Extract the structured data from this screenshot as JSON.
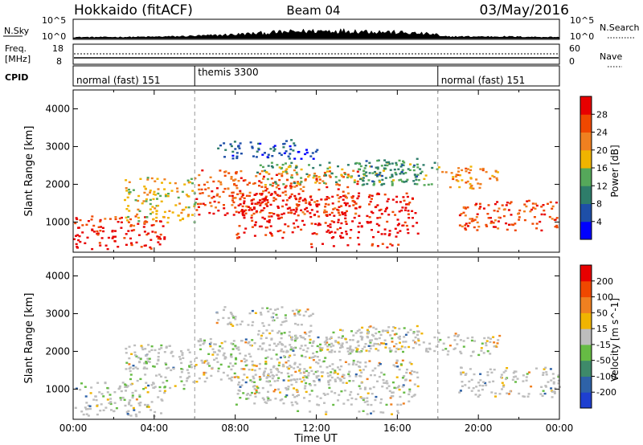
{
  "header": {
    "radar": "Hokkaido (fitACF)",
    "beam": "Beam 04",
    "date": "03/May/2016"
  },
  "noise_panel": {
    "left_label": "N.Sky",
    "right_label": "N.Search",
    "left_ticks": [
      "10^5",
      "10^0"
    ],
    "right_ticks": [
      "10^5",
      "10^0"
    ]
  },
  "freq_panel": {
    "left_label_1": "Freq.",
    "left_label_2": "[MHz]",
    "left_ticks": [
      "18",
      "8"
    ],
    "right_label": "Nave",
    "right_ticks": [
      "60",
      "0"
    ]
  },
  "cpid_panel": {
    "label": "CPID",
    "segments": [
      {
        "label": "normal (fast) 151",
        "start_hour": 0,
        "end_hour": 6
      },
      {
        "label": "themis 3300",
        "start_hour": 6,
        "end_hour": 18
      },
      {
        "label": "normal (fast) 151",
        "start_hour": 18,
        "end_hour": 24
      }
    ]
  },
  "colors": {
    "power_scale": [
      "#0000ff",
      "#1e4fa8",
      "#2e7d6a",
      "#55a85a",
      "#f0b400",
      "#f08020",
      "#f04800",
      "#e80000"
    ],
    "velocity_scale": [
      "#1e3fd0",
      "#2e62a8",
      "#3e8a6a",
      "#66bb44",
      "#bdbdbd",
      "#f0b400",
      "#f08020",
      "#f04800",
      "#e80000"
    ],
    "ground_scatter": "#bdbdbd"
  },
  "chart_data": [
    {
      "type": "heatmap",
      "title": "",
      "xlabel": "Time UT",
      "ylabel": "Slant Range [km]",
      "xlim": [
        0,
        24
      ],
      "ylim": [
        200,
        4500
      ],
      "x_ticks": [
        "00:00",
        "04:00",
        "08:00",
        "12:00",
        "16:00",
        "20:00",
        "00:00"
      ],
      "y_ticks": [
        "1000",
        "2000",
        "3000",
        "4000"
      ],
      "colorbar_label": "Power [dB]",
      "colorbar_ticks": [
        "4",
        "8",
        "12",
        "16",
        "20",
        "24",
        "28"
      ],
      "colorbar_range": [
        0,
        30
      ]
    },
    {
      "type": "heatmap",
      "title": "",
      "xlabel": "Time UT",
      "ylabel": "Slant Range [km]",
      "xlim": [
        0,
        24
      ],
      "ylim": [
        200,
        4500
      ],
      "x_ticks": [
        "00:00",
        "04:00",
        "08:00",
        "12:00",
        "16:00",
        "20:00",
        "00:00"
      ],
      "y_ticks": [
        "1000",
        "2000",
        "3000",
        "4000"
      ],
      "colorbar_label": "Velocity [m s^-1]",
      "colorbar_ticks": [
        "200",
        "100",
        "50",
        "15",
        "-15",
        "-50",
        "-100",
        "-200"
      ],
      "colorbar_range": [
        -250,
        250
      ]
    }
  ]
}
